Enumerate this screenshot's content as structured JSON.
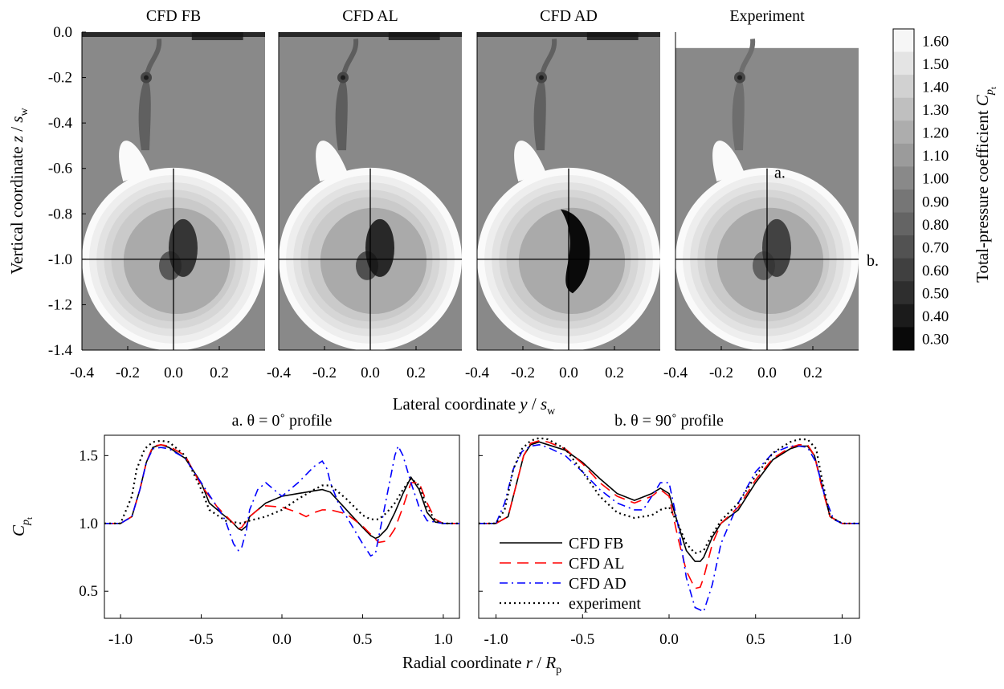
{
  "chart_data": [
    {
      "type": "heatmap",
      "panels": [
        {
          "title": "CFD FB",
          "data_extent_z": [
            -1.4,
            0.0
          ],
          "wake_dark": 0.78,
          "core_dark": 0.85,
          "core_style": "fb"
        },
        {
          "title": "CFD AL",
          "data_extent_z": [
            -1.4,
            0.0
          ],
          "wake_dark": 0.8,
          "core_dark": 0.95,
          "core_style": "al"
        },
        {
          "title": "CFD AD",
          "data_extent_z": [
            -1.4,
            0.0
          ],
          "wake_dark": 0.78,
          "core_dark": 1.0,
          "core_style": "ad"
        },
        {
          "title": "Experiment",
          "data_extent_z": [
            -1.4,
            -0.07
          ],
          "wake_dark": 0.7,
          "core_dark": 0.75,
          "core_style": "exp"
        }
      ],
      "x_ticks": [
        "-0.4",
        "-0.2",
        "0.0",
        "0.2"
      ],
      "y_ticks": [
        "0.0",
        "-0.2",
        "-0.4",
        "-0.6",
        "-0.8",
        "-1.0",
        "-1.2",
        "-1.4"
      ],
      "xlim": [
        -0.4,
        0.4
      ],
      "ylim": [
        -1.4,
        0.0
      ],
      "xlabel": {
        "main": "Lateral coordinate ",
        "var": "y",
        "sep": " / ",
        "var2": "s",
        "sub": "w"
      },
      "ylabel": {
        "main": "Vertical coordinate ",
        "var": "z",
        "sep": " / ",
        "var2": "s",
        "sub": "w"
      },
      "disk_center": {
        "y": 0.0,
        "z": -1.0
      },
      "disk_radius": 0.4,
      "profile_line_labels": [
        "a.",
        "b."
      ],
      "colorbar": {
        "label": {
          "main": "Total-pressure coefficient ",
          "var": "C",
          "sub": "p",
          "subsub": "t"
        },
        "levels": [
          "1.60",
          "1.50",
          "1.40",
          "1.30",
          "1.20",
          "1.10",
          "1.00",
          "0.90",
          "0.80",
          "0.70",
          "0.60",
          "0.50",
          "0.40",
          "0.30"
        ],
        "range": [
          0.25,
          1.65
        ],
        "colormap": "gray"
      }
    },
    {
      "type": "line",
      "panels": [
        {
          "title": "a. θ = 0˚ profile",
          "series": [
            {
              "name": "CFD FB",
              "color": "#000000",
              "dash": "solid",
              "x": [
                -1.1,
                -1.0,
                -0.93,
                -0.88,
                -0.84,
                -0.8,
                -0.75,
                -0.7,
                -0.6,
                -0.5,
                -0.45,
                -0.35,
                -0.3,
                -0.27,
                -0.25,
                -0.22,
                -0.2,
                -0.1,
                0.0,
                0.1,
                0.2,
                0.25,
                0.3,
                0.4,
                0.5,
                0.55,
                0.58,
                0.6,
                0.65,
                0.7,
                0.75,
                0.8,
                0.85,
                0.9,
                0.95,
                1.0,
                1.1
              ],
              "y": [
                1.0,
                1.0,
                1.05,
                1.25,
                1.45,
                1.56,
                1.58,
                1.56,
                1.48,
                1.3,
                1.15,
                1.05,
                1.0,
                0.96,
                0.95,
                0.98,
                1.05,
                1.15,
                1.2,
                1.22,
                1.24,
                1.25,
                1.23,
                1.1,
                0.97,
                0.91,
                0.89,
                0.9,
                0.96,
                1.08,
                1.22,
                1.34,
                1.25,
                1.08,
                1.01,
                1.0,
                1.0
              ]
            },
            {
              "name": "CFD AL",
              "color": "#ff0000",
              "dash": "dashed",
              "x": [
                -1.1,
                -1.0,
                -0.93,
                -0.88,
                -0.84,
                -0.8,
                -0.75,
                -0.7,
                -0.6,
                -0.5,
                -0.4,
                -0.3,
                -0.27,
                -0.25,
                -0.2,
                -0.15,
                -0.1,
                0.0,
                0.1,
                0.15,
                0.2,
                0.25,
                0.3,
                0.4,
                0.5,
                0.55,
                0.6,
                0.65,
                0.7,
                0.75,
                0.8,
                0.85,
                0.9,
                0.95,
                1.0,
                1.1
              ],
              "y": [
                1.0,
                1.0,
                1.05,
                1.25,
                1.45,
                1.57,
                1.58,
                1.57,
                1.5,
                1.28,
                1.12,
                1.0,
                0.96,
                0.97,
                1.05,
                1.1,
                1.13,
                1.12,
                1.08,
                1.05,
                1.08,
                1.1,
                1.1,
                1.07,
                0.98,
                0.92,
                0.86,
                0.87,
                0.96,
                1.12,
                1.3,
                1.3,
                1.15,
                1.03,
                1.0,
                1.0
              ]
            },
            {
              "name": "CFD AD",
              "color": "#0000ff",
              "dash": "dashdot",
              "x": [
                -1.1,
                -1.0,
                -0.93,
                -0.88,
                -0.84,
                -0.8,
                -0.75,
                -0.7,
                -0.6,
                -0.5,
                -0.4,
                -0.35,
                -0.3,
                -0.27,
                -0.25,
                -0.22,
                -0.2,
                -0.15,
                -0.1,
                -0.05,
                0.0,
                0.1,
                0.2,
                0.25,
                0.28,
                0.3,
                0.35,
                0.4,
                0.45,
                0.5,
                0.55,
                0.58,
                0.6,
                0.65,
                0.7,
                0.72,
                0.75,
                0.8,
                0.85,
                0.9,
                1.0,
                1.1
              ],
              "y": [
                1.0,
                1.0,
                1.05,
                1.25,
                1.45,
                1.55,
                1.56,
                1.55,
                1.48,
                1.3,
                1.12,
                1.02,
                0.85,
                0.8,
                0.82,
                0.95,
                1.1,
                1.25,
                1.3,
                1.25,
                1.2,
                1.3,
                1.42,
                1.46,
                1.4,
                1.3,
                1.15,
                1.05,
                0.95,
                0.85,
                0.76,
                0.78,
                0.9,
                1.2,
                1.5,
                1.57,
                1.5,
                1.3,
                1.12,
                1.02,
                1.0,
                1.0
              ]
            },
            {
              "name": "experiment",
              "color": "#000000",
              "dash": "dotted",
              "x": [
                -1.1,
                -1.0,
                -0.93,
                -0.9,
                -0.85,
                -0.8,
                -0.75,
                -0.7,
                -0.6,
                -0.5,
                -0.45,
                -0.35,
                -0.3,
                -0.25,
                -0.2,
                -0.1,
                0.0,
                0.1,
                0.2,
                0.25,
                0.3,
                0.4,
                0.5,
                0.55,
                0.6,
                0.65,
                0.7,
                0.75,
                0.8,
                0.85,
                0.9,
                0.95,
                1.0,
                1.1
              ],
              "y": [
                1.0,
                1.0,
                1.2,
                1.4,
                1.55,
                1.6,
                1.61,
                1.6,
                1.5,
                1.25,
                1.1,
                1.02,
                1.01,
                1.0,
                1.02,
                1.05,
                1.1,
                1.18,
                1.25,
                1.28,
                1.28,
                1.18,
                1.06,
                1.03,
                1.03,
                1.08,
                1.15,
                1.25,
                1.33,
                1.28,
                1.12,
                1.02,
                1.0,
                1.0
              ]
            }
          ]
        },
        {
          "title": "b. θ = 90˚ profile",
          "series": [
            {
              "name": "CFD FB",
              "color": "#000000",
              "dash": "solid",
              "x": [
                -1.1,
                -1.0,
                -0.93,
                -0.88,
                -0.84,
                -0.8,
                -0.75,
                -0.7,
                -0.6,
                -0.5,
                -0.4,
                -0.3,
                -0.2,
                -0.1,
                -0.05,
                0.0,
                0.05,
                0.1,
                0.15,
                0.18,
                0.2,
                0.25,
                0.3,
                0.4,
                0.5,
                0.6,
                0.7,
                0.75,
                0.8,
                0.84,
                0.88,
                0.93,
                1.0,
                1.1
              ],
              "y": [
                1.0,
                1.0,
                1.05,
                1.3,
                1.5,
                1.58,
                1.6,
                1.58,
                1.54,
                1.45,
                1.33,
                1.22,
                1.17,
                1.22,
                1.26,
                1.22,
                1.0,
                0.8,
                0.72,
                0.72,
                0.75,
                0.9,
                1.0,
                1.1,
                1.3,
                1.47,
                1.55,
                1.57,
                1.57,
                1.5,
                1.3,
                1.05,
                1.0,
                1.0
              ]
            },
            {
              "name": "CFD AL",
              "color": "#ff0000",
              "dash": "dashed",
              "x": [
                -1.1,
                -1.0,
                -0.93,
                -0.88,
                -0.84,
                -0.8,
                -0.75,
                -0.7,
                -0.6,
                -0.5,
                -0.4,
                -0.3,
                -0.2,
                -0.1,
                -0.05,
                0.0,
                0.05,
                0.1,
                0.15,
                0.18,
                0.2,
                0.25,
                0.3,
                0.4,
                0.5,
                0.6,
                0.7,
                0.75,
                0.8,
                0.84,
                0.88,
                0.93,
                1.0,
                1.1
              ],
              "y": [
                1.0,
                1.0,
                1.05,
                1.3,
                1.5,
                1.59,
                1.61,
                1.6,
                1.55,
                1.44,
                1.3,
                1.2,
                1.15,
                1.2,
                1.25,
                1.2,
                0.9,
                0.65,
                0.52,
                0.53,
                0.6,
                0.85,
                1.0,
                1.12,
                1.32,
                1.48,
                1.56,
                1.58,
                1.58,
                1.5,
                1.28,
                1.05,
                1.0,
                1.0
              ]
            },
            {
              "name": "CFD AD",
              "color": "#0000ff",
              "dash": "dashdot",
              "x": [
                -1.1,
                -1.0,
                -0.95,
                -0.9,
                -0.85,
                -0.8,
                -0.75,
                -0.7,
                -0.6,
                -0.5,
                -0.4,
                -0.3,
                -0.2,
                -0.15,
                -0.1,
                -0.05,
                0.0,
                0.05,
                0.1,
                0.15,
                0.2,
                0.25,
                0.3,
                0.35,
                0.4,
                0.5,
                0.6,
                0.7,
                0.75,
                0.8,
                0.85,
                0.9,
                0.95,
                1.0,
                1.1
              ],
              "y": [
                1.0,
                1.0,
                1.15,
                1.4,
                1.53,
                1.57,
                1.58,
                1.56,
                1.5,
                1.38,
                1.25,
                1.15,
                1.1,
                1.1,
                1.2,
                1.3,
                1.3,
                1.0,
                0.6,
                0.38,
                0.35,
                0.55,
                0.85,
                1.0,
                1.15,
                1.38,
                1.52,
                1.57,
                1.57,
                1.56,
                1.45,
                1.2,
                1.03,
                1.0,
                1.0
              ]
            },
            {
              "name": "experiment",
              "color": "#000000",
              "dash": "dotted",
              "x": [
                -1.1,
                -1.0,
                -0.95,
                -0.9,
                -0.85,
                -0.8,
                -0.75,
                -0.7,
                -0.6,
                -0.5,
                -0.4,
                -0.3,
                -0.2,
                -0.1,
                -0.05,
                0.0,
                0.05,
                0.1,
                0.15,
                0.2,
                0.25,
                0.3,
                0.4,
                0.5,
                0.6,
                0.7,
                0.75,
                0.8,
                0.85,
                0.88,
                0.93,
                1.0,
                1.1
              ],
              "y": [
                1.0,
                1.0,
                1.1,
                1.4,
                1.55,
                1.61,
                1.63,
                1.62,
                1.55,
                1.38,
                1.2,
                1.08,
                1.04,
                1.06,
                1.1,
                1.12,
                1.0,
                0.85,
                0.78,
                0.8,
                0.92,
                1.02,
                1.15,
                1.35,
                1.52,
                1.6,
                1.62,
                1.62,
                1.55,
                1.35,
                1.05,
                1.0,
                1.0
              ]
            }
          ]
        }
      ],
      "xlim": [
        -1.1,
        1.1
      ],
      "ylim": [
        0.3,
        1.65
      ],
      "x_ticks": [
        "-1.0",
        "-0.5",
        "0.0",
        "0.5",
        "1.0"
      ],
      "y_ticks": [
        "1.5",
        "1.0",
        "0.5"
      ],
      "xlabel": {
        "main": "Radial coordinate ",
        "var": "r",
        "sep": " / ",
        "var2": "R",
        "sub": "p"
      },
      "ylabel": {
        "var": "C",
        "sub": "p",
        "subsub": "t"
      },
      "legend_placement": "inside bottom-left of panel b"
    }
  ]
}
